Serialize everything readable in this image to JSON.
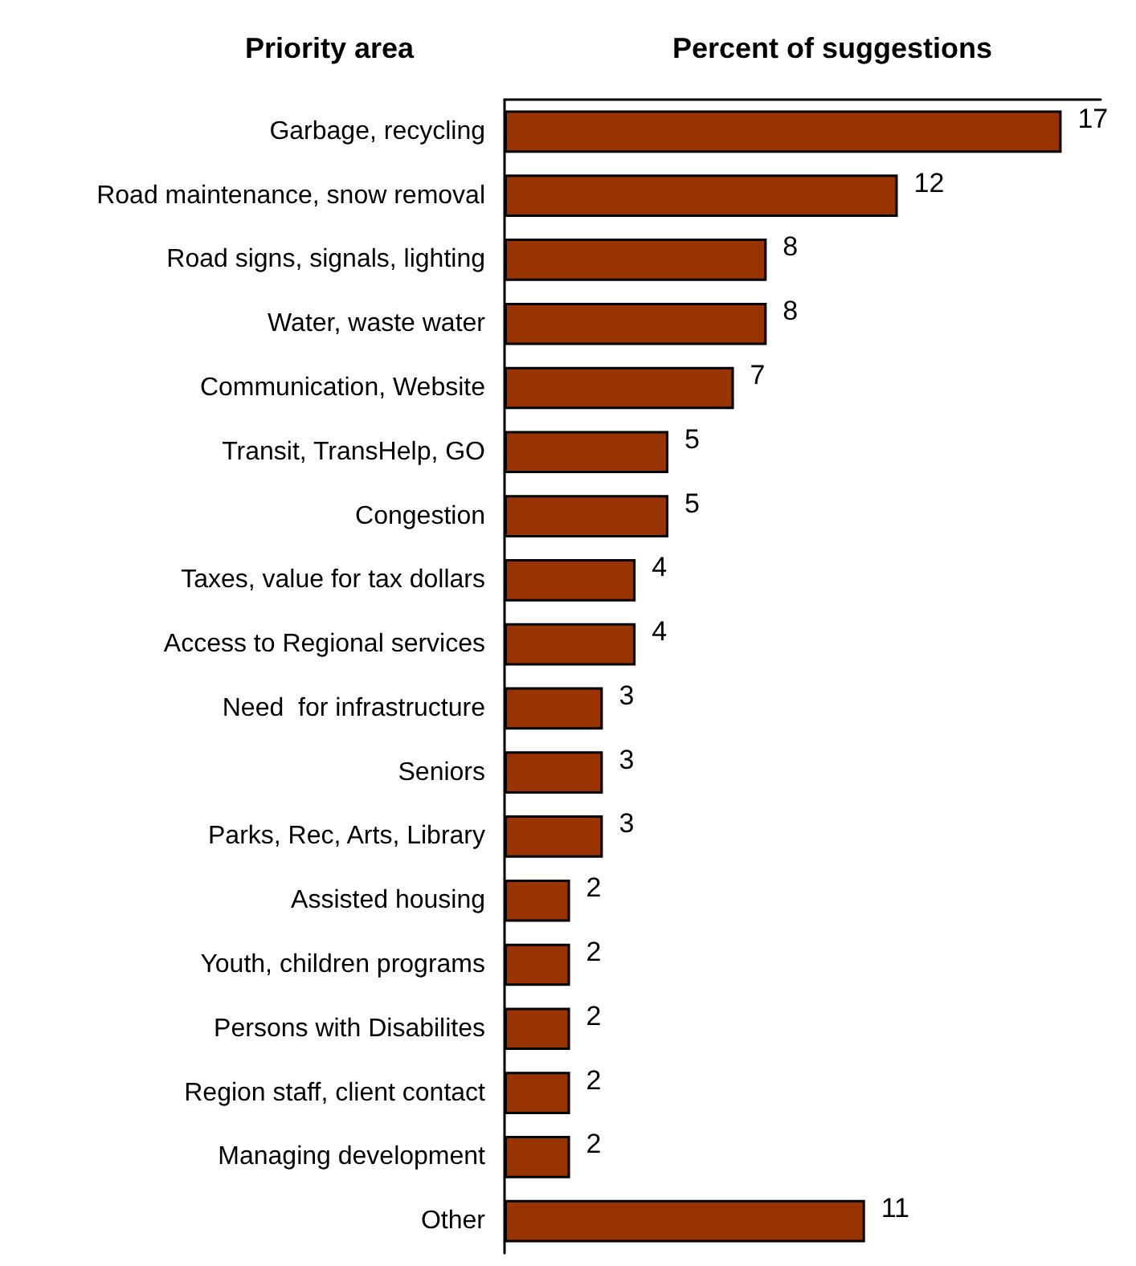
{
  "chart_data": {
    "type": "bar",
    "orientation": "horizontal",
    "xlabel": "Percent of suggestions",
    "ylabel": "Priority area",
    "categories": [
      "Garbage, recycling",
      "Road maintenance, snow removal",
      "Road signs, signals, lighting",
      "Water, waste water",
      "Communication, Website",
      "Transit, TransHelp, GO",
      "Congestion",
      "Taxes, value for tax dollars",
      "Access to Regional services",
      "Need  for infrastructure",
      "Seniors",
      "Parks, Rec, Arts, Library",
      "Assisted housing",
      "Youth, children programs",
      "Persons with Disabilites",
      "Region staff, client contact",
      "Managing development",
      "Other"
    ],
    "values": [
      17,
      12,
      8,
      8,
      7,
      5,
      5,
      4,
      4,
      3,
      3,
      3,
      2,
      2,
      2,
      2,
      2,
      11
    ],
    "color": "#993300",
    "data_labels": true
  }
}
